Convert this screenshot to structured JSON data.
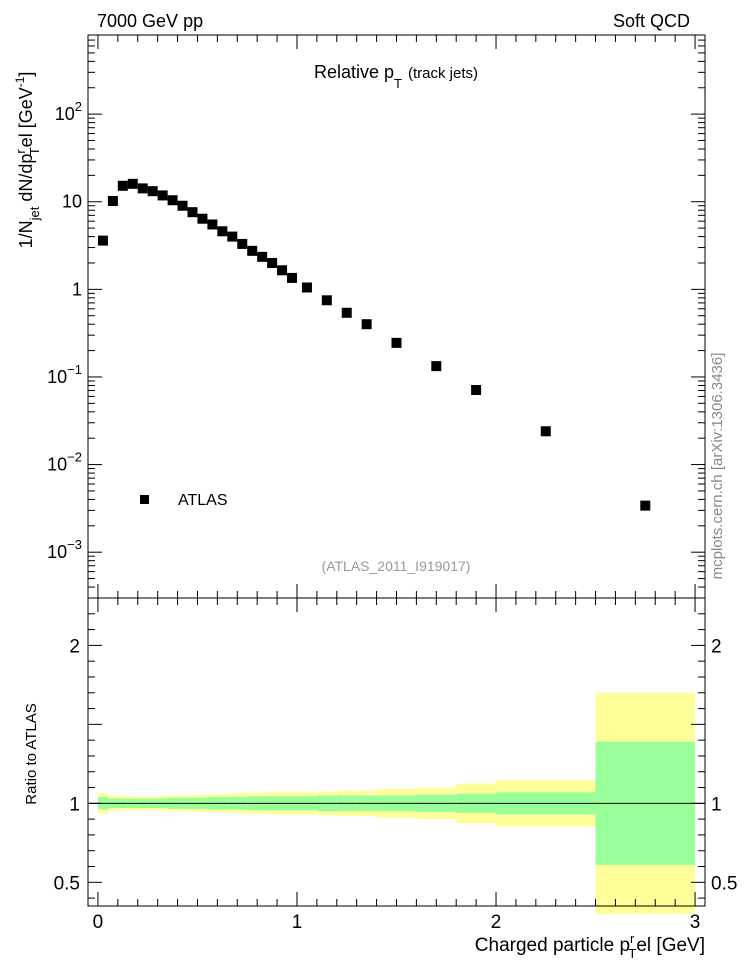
{
  "header": {
    "left": "7000 GeV pp",
    "right": "Soft QCD"
  },
  "side_note": "mcplots.cern.ch [arXiv:1306.3436]",
  "chart_data": [
    {
      "type": "scatter",
      "title_main": "Relative p",
      "title_sub": "T",
      "title_extra": "(track jets)",
      "ylabel": {
        "p1": "1/N",
        "p1_sub": "jet",
        "p2": " dN/dp",
        "p2_sup": "r",
        "p2_sub": "T",
        "p3": "el [GeV",
        "p3_sup": "-1",
        "p4": "]"
      },
      "yscale": "log",
      "ylim": [
        0.0003,
        800
      ],
      "xlim": [
        -0.05,
        3.05
      ],
      "y_ticks": [
        {
          "value": 0.001,
          "base": "10",
          "exp": "−3"
        },
        {
          "value": 0.01,
          "base": "10",
          "exp": "−2"
        },
        {
          "value": 0.1,
          "base": "10",
          "exp": "−1"
        },
        {
          "value": 1,
          "label": "1"
        },
        {
          "value": 10,
          "label": "10"
        },
        {
          "value": 100,
          "base": "10",
          "exp": "2"
        }
      ],
      "legend": {
        "position": "lower-left",
        "label": "ATLAS"
      },
      "watermark": "(ATLAS_2011_I919017)",
      "series": [
        {
          "name": "ATLAS",
          "marker": "square",
          "color": "#000000",
          "x": [
            0.025,
            0.075,
            0.125,
            0.175,
            0.225,
            0.275,
            0.325,
            0.375,
            0.425,
            0.475,
            0.525,
            0.575,
            0.625,
            0.675,
            0.725,
            0.775,
            0.825,
            0.875,
            0.925,
            0.975,
            1.05,
            1.15,
            1.25,
            1.35,
            1.5,
            1.7,
            1.9,
            2.25,
            2.75
          ],
          "y": [
            3.6,
            10.2,
            15.2,
            16.0,
            14.2,
            13.2,
            11.8,
            10.4,
            9.0,
            7.6,
            6.4,
            5.5,
            4.6,
            4.0,
            3.3,
            2.75,
            2.35,
            2.0,
            1.65,
            1.35,
            1.05,
            0.75,
            0.54,
            0.4,
            0.245,
            0.133,
            0.071,
            0.024,
            0.0034
          ]
        }
      ]
    },
    {
      "type": "area",
      "ylabel": "Ratio to ATLAS",
      "xlabel_main": "Charged particle p",
      "xlabel_sup": "r",
      "xlabel_sub": "T",
      "xlabel_tail": "el [GeV]",
      "xlim": [
        -0.05,
        3.05
      ],
      "ylim": [
        0.35,
        2.3
      ],
      "x_ticks": [
        0,
        1,
        2,
        3
      ],
      "y_ticks": [
        0.5,
        1,
        2
      ],
      "reference_line": 1,
      "bands": {
        "bin_edges": [
          0,
          0.05,
          0.1,
          0.15,
          0.2,
          0.25,
          0.3,
          0.35,
          0.4,
          0.45,
          0.5,
          0.55,
          0.6,
          0.65,
          0.7,
          0.75,
          0.8,
          0.85,
          0.9,
          0.95,
          1.0,
          1.1,
          1.2,
          1.3,
          1.4,
          1.6,
          1.8,
          2.0,
          2.5,
          3.0
        ],
        "stat_color": "#99ff99",
        "syst_color": "#ffff99",
        "stat_half_width": [
          0.04,
          0.03,
          0.03,
          0.03,
          0.03,
          0.03,
          0.03,
          0.035,
          0.035,
          0.035,
          0.035,
          0.04,
          0.04,
          0.04,
          0.04,
          0.045,
          0.045,
          0.045,
          0.045,
          0.045,
          0.045,
          0.05,
          0.05,
          0.05,
          0.05,
          0.055,
          0.06,
          0.07,
          0.39
        ],
        "total_half_width": [
          0.065,
          0.05,
          0.045,
          0.045,
          0.045,
          0.045,
          0.045,
          0.05,
          0.05,
          0.05,
          0.055,
          0.055,
          0.06,
          0.06,
          0.065,
          0.065,
          0.065,
          0.07,
          0.07,
          0.07,
          0.07,
          0.075,
          0.08,
          0.08,
          0.09,
          0.1,
          0.125,
          0.145,
          0.7
        ]
      }
    }
  ]
}
